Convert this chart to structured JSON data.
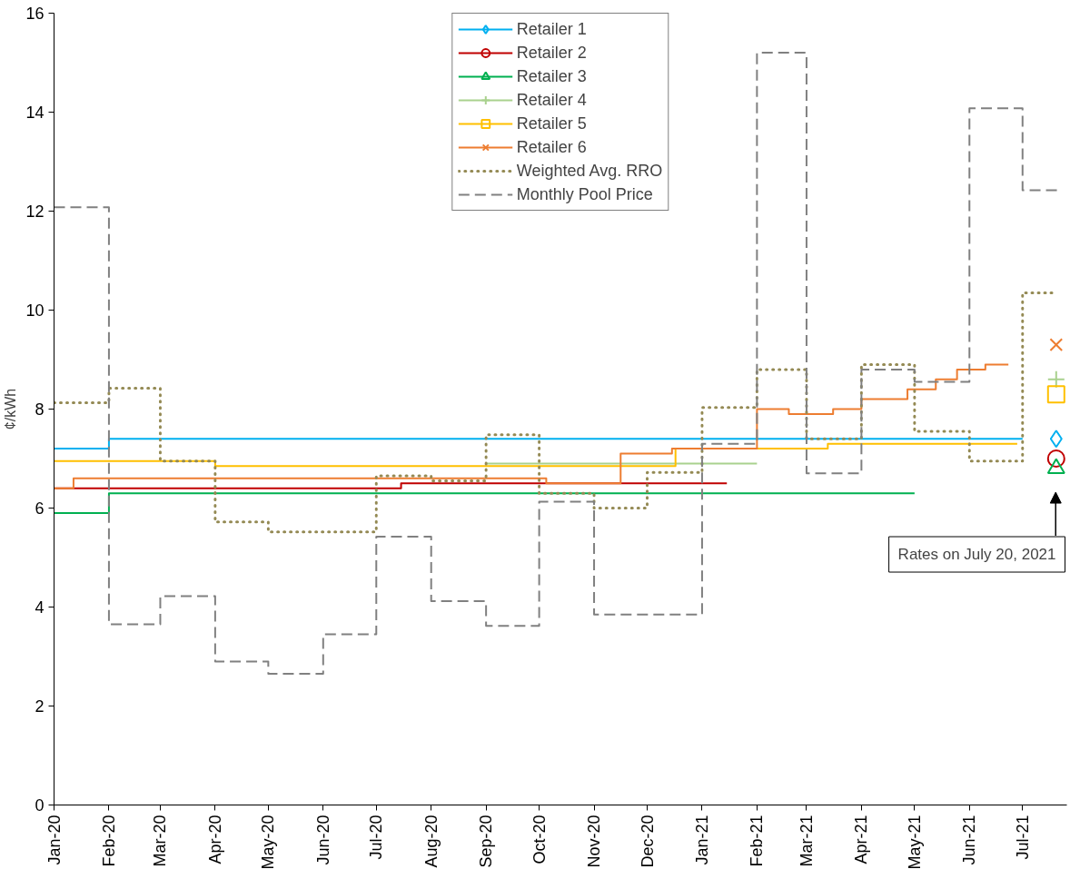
{
  "chart_data": {
    "type": "step",
    "ylabel": "¢/kWh",
    "xlim": [
      "2020-01-01",
      "2021-07-26"
    ],
    "xticks": [
      {
        "value": "2020-01-01",
        "label": "Jan-20"
      },
      {
        "value": "2020-02-01",
        "label": "Feb-20"
      },
      {
        "value": "2020-03-01",
        "label": "Mar-20"
      },
      {
        "value": "2020-04-01",
        "label": "Apr-20"
      },
      {
        "value": "2020-05-01",
        "label": "May-20"
      },
      {
        "value": "2020-06-01",
        "label": "Jun-20"
      },
      {
        "value": "2020-07-01",
        "label": "Jul-20"
      },
      {
        "value": "2020-08-01",
        "label": "Aug-20"
      },
      {
        "value": "2020-09-01",
        "label": "Sep-20"
      },
      {
        "value": "2020-10-01",
        "label": "Oct-20"
      },
      {
        "value": "2020-11-01",
        "label": "Nov-20"
      },
      {
        "value": "2020-12-01",
        "label": "Dec-20"
      },
      {
        "value": "2021-01-01",
        "label": "Jan-21"
      },
      {
        "value": "2021-02-01",
        "label": "Feb-21"
      },
      {
        "value": "2021-03-01",
        "label": "Mar-21"
      },
      {
        "value": "2021-04-01",
        "label": "Apr-21"
      },
      {
        "value": "2021-05-01",
        "label": "May-21"
      },
      {
        "value": "2021-06-01",
        "label": "Jun-21"
      },
      {
        "value": "2021-07-01",
        "label": "Jul-21"
      }
    ],
    "ylim": [
      0,
      16
    ],
    "yticks": [
      0,
      2,
      4,
      6,
      8,
      10,
      12,
      14,
      16
    ],
    "grid": false,
    "legend": "top",
    "annotations": [
      "Rates on July 20, 2021"
    ],
    "series": [
      {
        "name": "Retailer 1",
        "color": "#00b0f0",
        "line_style": "solid",
        "x": [
          "2020-01-01",
          "2020-02-01",
          "2021-07-01"
        ],
        "values": [
          7.2,
          7.4,
          7.4
        ]
      },
      {
        "name": "Retailer 2",
        "color": "#c00000",
        "line_style": "solid",
        "x": [
          "2020-01-01",
          "2020-07-15",
          "2021-01-15"
        ],
        "values": [
          6.4,
          6.5,
          6.5
        ]
      },
      {
        "name": "Retailer 3",
        "color": "#00b050",
        "line_style": "solid",
        "x": [
          "2020-01-01",
          "2020-02-01",
          "2021-05-01"
        ],
        "values": [
          5.9,
          6.3,
          6.3
        ]
      },
      {
        "name": "Retailer 4",
        "color": "#a9d18e",
        "line_style": "solid",
        "x": [
          "2020-09-01",
          "2021-02-01"
        ],
        "values": [
          6.9,
          6.9
        ]
      },
      {
        "name": "Retailer 5",
        "color": "#ffc000",
        "line_style": "solid",
        "x": [
          "2020-01-01",
          "2020-04-01",
          "2020-12-17",
          "2021-03-13",
          "2021-06-28"
        ],
        "values": [
          6.95,
          6.85,
          7.2,
          7.3,
          7.3
        ]
      },
      {
        "name": "Retailer 6",
        "color": "#ed7d31",
        "line_style": "solid",
        "x": [
          "2020-01-01",
          "2020-01-12",
          "2020-10-05",
          "2020-11-16",
          "2020-12-15",
          "2021-02-01",
          "2021-02-19",
          "2021-03-16",
          "2021-04-01",
          "2021-04-27",
          "2021-05-13",
          "2021-05-25",
          "2021-06-10",
          "2021-06-23"
        ],
        "values": [
          6.4,
          6.6,
          6.5,
          7.1,
          7.2,
          8.0,
          7.9,
          8.0,
          8.2,
          8.4,
          8.6,
          8.8,
          8.9,
          8.9
        ]
      },
      {
        "type": "scatter",
        "color": "#00b0f0",
        "marker": "diamond",
        "x": [
          "2021-07-20"
        ],
        "values": [
          7.4
        ]
      },
      {
        "type": "scatter",
        "color": "#c00000",
        "marker": "circle",
        "x": [
          "2021-07-20"
        ],
        "values": [
          7.0
        ]
      },
      {
        "type": "scatter",
        "color": "#00b050",
        "marker": "triangle",
        "x": [
          "2021-07-20"
        ],
        "values": [
          6.8
        ]
      },
      {
        "type": "scatter",
        "color": "#a9d18e",
        "x": [
          "2021-07-20"
        ],
        "values": [
          8.6
        ]
      },
      {
        "type": "scatter",
        "color": "#ffc000",
        "marker": "square",
        "x": [
          "2021-07-20"
        ],
        "values": [
          8.3
        ]
      },
      {
        "type": "scatter",
        "color": "#ed7d31",
        "marker": "cross",
        "x": [
          "2021-07-20"
        ],
        "values": [
          9.3
        ]
      },
      {
        "name": "Weighted Avg. RRO",
        "color": "#948a54",
        "marker": "none",
        "line_style": "dotted",
        "x": [
          "2020-01-01",
          "2020-02-01",
          "2020-03-01",
          "2020-04-01",
          "2020-05-01",
          "2020-07-01",
          "2020-08-01",
          "2020-09-01",
          "2020-10-01",
          "2020-11-01",
          "2020-12-01",
          "2021-01-01",
          "2021-02-01",
          "2021-03-01",
          "2021-04-01",
          "2021-05-01",
          "2021-06-01",
          "2021-07-01",
          "2021-07-20"
        ],
        "values": [
          8.13,
          8.42,
          6.95,
          5.72,
          5.52,
          6.65,
          6.55,
          7.48,
          6.3,
          6.0,
          6.72,
          8.03,
          8.8,
          7.4,
          8.9,
          7.55,
          6.95,
          10.35,
          10.35
        ]
      },
      {
        "name": "Monthly Pool Price",
        "color": "#808080",
        "marker": "none",
        "line_style": "dashed",
        "x": [
          "2020-01-01",
          "2020-02-01",
          "2020-03-01",
          "2020-04-01",
          "2020-05-01",
          "2020-06-01",
          "2020-07-01",
          "2020-08-01",
          "2020-09-01",
          "2020-10-01",
          "2020-11-01",
          "2020-12-01",
          "2021-01-01",
          "2021-02-01",
          "2021-03-01",
          "2021-04-01",
          "2021-05-01",
          "2021-06-01",
          "2021-07-01",
          "2021-07-22"
        ],
        "values": [
          12.08,
          3.65,
          4.22,
          2.9,
          2.65,
          3.45,
          5.42,
          4.12,
          3.62,
          6.13,
          3.85,
          3.85,
          7.3,
          15.2,
          6.7,
          8.8,
          8.55,
          14.08,
          12.42,
          12.42
        ]
      }
    ]
  }
}
